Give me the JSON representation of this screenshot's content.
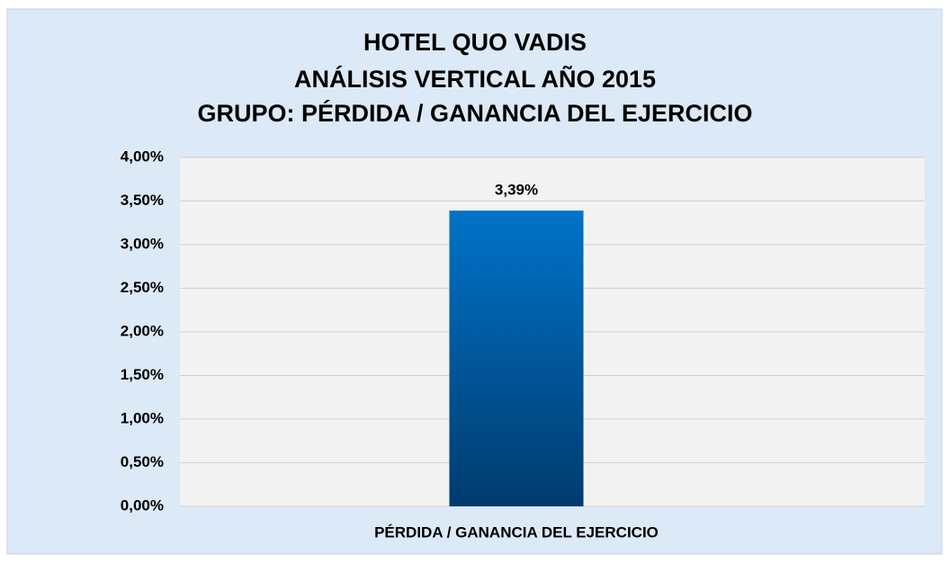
{
  "chart_data": {
    "type": "bar",
    "title": [
      "HOTEL QUO VADIS",
      "ANÁLISIS VERTICAL AÑO 2015",
      "GRUPO: PÉRDIDA / GANANCIA DEL EJERCICIO"
    ],
    "categories": [
      "PÉRDIDA / GANANCIA DEL EJERCICIO"
    ],
    "values": [
      3.39
    ],
    "value_labels": [
      "3,39%"
    ],
    "color": "#0073c8",
    "ylim": [
      0,
      4
    ],
    "yticks": [
      {
        "value": 0,
        "label": "0,00%"
      },
      {
        "value": 0.5,
        "label": "0,50%"
      },
      {
        "value": 1,
        "label": "1,00%"
      },
      {
        "value": 1.5,
        "label": "1,50%"
      },
      {
        "value": 2,
        "label": "2,00%"
      },
      {
        "value": 2.5,
        "label": "2,50%"
      },
      {
        "value": 3,
        "label": "3,00%"
      },
      {
        "value": 3.5,
        "label": "3,50%"
      },
      {
        "value": 4,
        "label": "4,00%"
      }
    ],
    "grid": true
  }
}
